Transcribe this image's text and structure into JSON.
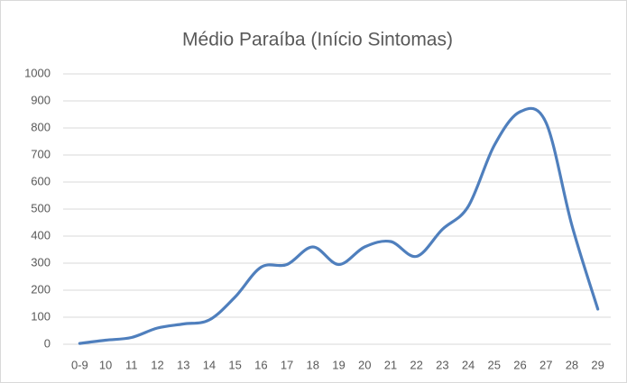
{
  "chart_data": {
    "type": "line",
    "title": "Médio Paraíba (Início Sintomas)",
    "categories": [
      "0-9",
      "10",
      "11",
      "12",
      "13",
      "14",
      "15",
      "16",
      "17",
      "18",
      "19",
      "20",
      "21",
      "22",
      "23",
      "24",
      "25",
      "26",
      "27",
      "28",
      "29"
    ],
    "values": [
      3,
      15,
      25,
      60,
      75,
      90,
      175,
      285,
      295,
      360,
      295,
      360,
      380,
      325,
      425,
      510,
      735,
      860,
      820,
      440,
      130
    ],
    "color": "#4f7fbd",
    "smooth": true,
    "ylim": [
      0,
      1000
    ],
    "yticks": [
      0,
      100,
      200,
      300,
      400,
      500,
      600,
      700,
      800,
      900,
      1000
    ],
    "grid": true
  }
}
